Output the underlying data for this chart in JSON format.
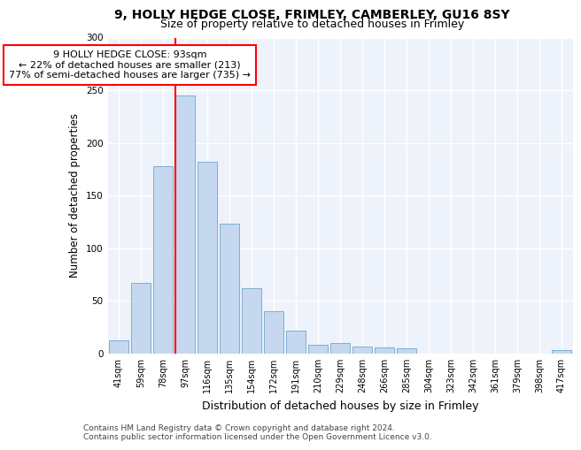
{
  "title1": "9, HOLLY HEDGE CLOSE, FRIMLEY, CAMBERLEY, GU16 8SY",
  "title2": "Size of property relative to detached houses in Frimley",
  "xlabel": "Distribution of detached houses by size in Frimley",
  "ylabel": "Number of detached properties",
  "categories": [
    "41sqm",
    "59sqm",
    "78sqm",
    "97sqm",
    "116sqm",
    "135sqm",
    "154sqm",
    "172sqm",
    "191sqm",
    "210sqm",
    "229sqm",
    "248sqm",
    "266sqm",
    "285sqm",
    "304sqm",
    "323sqm",
    "342sqm",
    "361sqm",
    "379sqm",
    "398sqm",
    "417sqm"
  ],
  "values": [
    13,
    67,
    178,
    245,
    182,
    123,
    62,
    40,
    22,
    8,
    10,
    7,
    6,
    5,
    0,
    0,
    0,
    0,
    0,
    0,
    3
  ],
  "bar_color": "#c5d8f0",
  "bar_edge_color": "#7bafd4",
  "redline_index": 3,
  "annotation_text": "9 HOLLY HEDGE CLOSE: 93sqm\n← 22% of detached houses are smaller (213)\n77% of semi-detached houses are larger (735) →",
  "annotation_box_color": "white",
  "annotation_box_edgecolor": "red",
  "footer": "Contains HM Land Registry data © Crown copyright and database right 2024.\nContains public sector information licensed under the Open Government Licence v3.0.",
  "ylim": [
    0,
    300
  ],
  "yticks": [
    0,
    50,
    100,
    150,
    200,
    250,
    300
  ],
  "background_color": "#eef2fa",
  "grid_color": "#ffffff",
  "title1_fontsize": 10,
  "title2_fontsize": 9,
  "xlabel_fontsize": 9,
  "ylabel_fontsize": 8.5,
  "tick_fontsize": 7,
  "annotation_fontsize": 8,
  "footer_fontsize": 6.5
}
